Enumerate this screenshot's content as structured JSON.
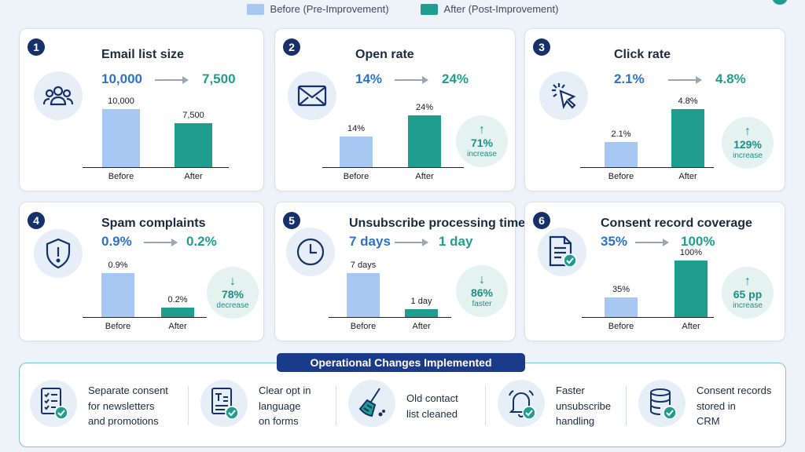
{
  "legend": {
    "before": "Before (Pre-Improvement)",
    "after": "After (Post-Improvement)"
  },
  "colors": {
    "before": "#a6c8f3",
    "after": "#1f9e8f",
    "navy": "#16306a",
    "blue_text": "#2d72c9"
  },
  "metrics": [
    {
      "number": "1",
      "title": "Email list size",
      "before_text": "10,000",
      "after_text": "7,500",
      "icon": "users-icon"
    },
    {
      "number": "2",
      "title": "Open rate",
      "before_text": "14%",
      "after_text": "24%",
      "icon": "envelope-icon",
      "badge": {
        "arrow": "↑",
        "value": "71%",
        "caption": "increase"
      }
    },
    {
      "number": "3",
      "title": "Click rate",
      "before_text": "2.1%",
      "after_text": "4.8%",
      "icon": "cursor-click-icon",
      "badge": {
        "arrow": "↑",
        "value": "129%",
        "caption": "increase"
      }
    },
    {
      "number": "4",
      "title": "Spam complaints",
      "before_text": "0.9%",
      "after_text": "0.2%",
      "icon": "shield-alert-icon",
      "badge": {
        "arrow": "↓",
        "value": "78%",
        "caption": "decrease"
      }
    },
    {
      "number": "5",
      "title": "Unsubscribe processing time",
      "before_text": "7 days",
      "after_text": "1 day",
      "icon": "clock-icon",
      "badge": {
        "arrow": "↓",
        "value": "86%",
        "caption": "faster"
      }
    },
    {
      "number": "6",
      "title": "Consent record coverage",
      "before_text": "35%",
      "after_text": "100%",
      "icon": "document-check-icon",
      "badge": {
        "arrow": "↑",
        "value": "65 pp",
        "caption": "increase"
      }
    }
  ],
  "chart_data": [
    {
      "type": "bar",
      "title": "Email list size",
      "categories": [
        "Before",
        "After"
      ],
      "values": [
        10000,
        7500
      ],
      "data_labels": [
        "10,000",
        "7,500"
      ]
    },
    {
      "type": "bar",
      "title": "Open rate",
      "categories": [
        "Before",
        "After"
      ],
      "values": [
        14,
        24
      ],
      "data_labels": [
        "14%",
        "24%"
      ]
    },
    {
      "type": "bar",
      "title": "Click rate",
      "categories": [
        "Before",
        "After"
      ],
      "values": [
        2.1,
        4.8
      ],
      "data_labels": [
        "2.1%",
        "4.8%"
      ]
    },
    {
      "type": "bar",
      "title": "Spam complaints",
      "categories": [
        "Before",
        "After"
      ],
      "values": [
        0.9,
        0.2
      ],
      "data_labels": [
        "0.9%",
        "0.2%"
      ]
    },
    {
      "type": "bar",
      "title": "Unsubscribe processing time",
      "categories": [
        "Before",
        "After"
      ],
      "values": [
        7,
        1
      ],
      "data_labels": [
        "7 days",
        "1 day"
      ]
    },
    {
      "type": "bar",
      "title": "Consent record coverage",
      "categories": [
        "Before",
        "After"
      ],
      "values": [
        35,
        100
      ],
      "data_labels": [
        "35%",
        "100%"
      ]
    }
  ],
  "operations": {
    "title": "Operational Changes Implemented",
    "items": [
      {
        "lines": [
          "Separate consent",
          "for newsletters",
          "and promotions"
        ],
        "icon": "checklist-icon"
      },
      {
        "lines": [
          "Clear opt in",
          "language",
          "on forms"
        ],
        "icon": "form-text-icon"
      },
      {
        "lines": [
          "Old contact",
          "list cleaned"
        ],
        "icon": "broom-icon"
      },
      {
        "lines": [
          "Faster",
          "unsubscribe",
          "handling"
        ],
        "icon": "bell-icon"
      },
      {
        "lines": [
          "Consent records",
          "stored in",
          "CRM"
        ],
        "icon": "database-icon"
      }
    ]
  }
}
